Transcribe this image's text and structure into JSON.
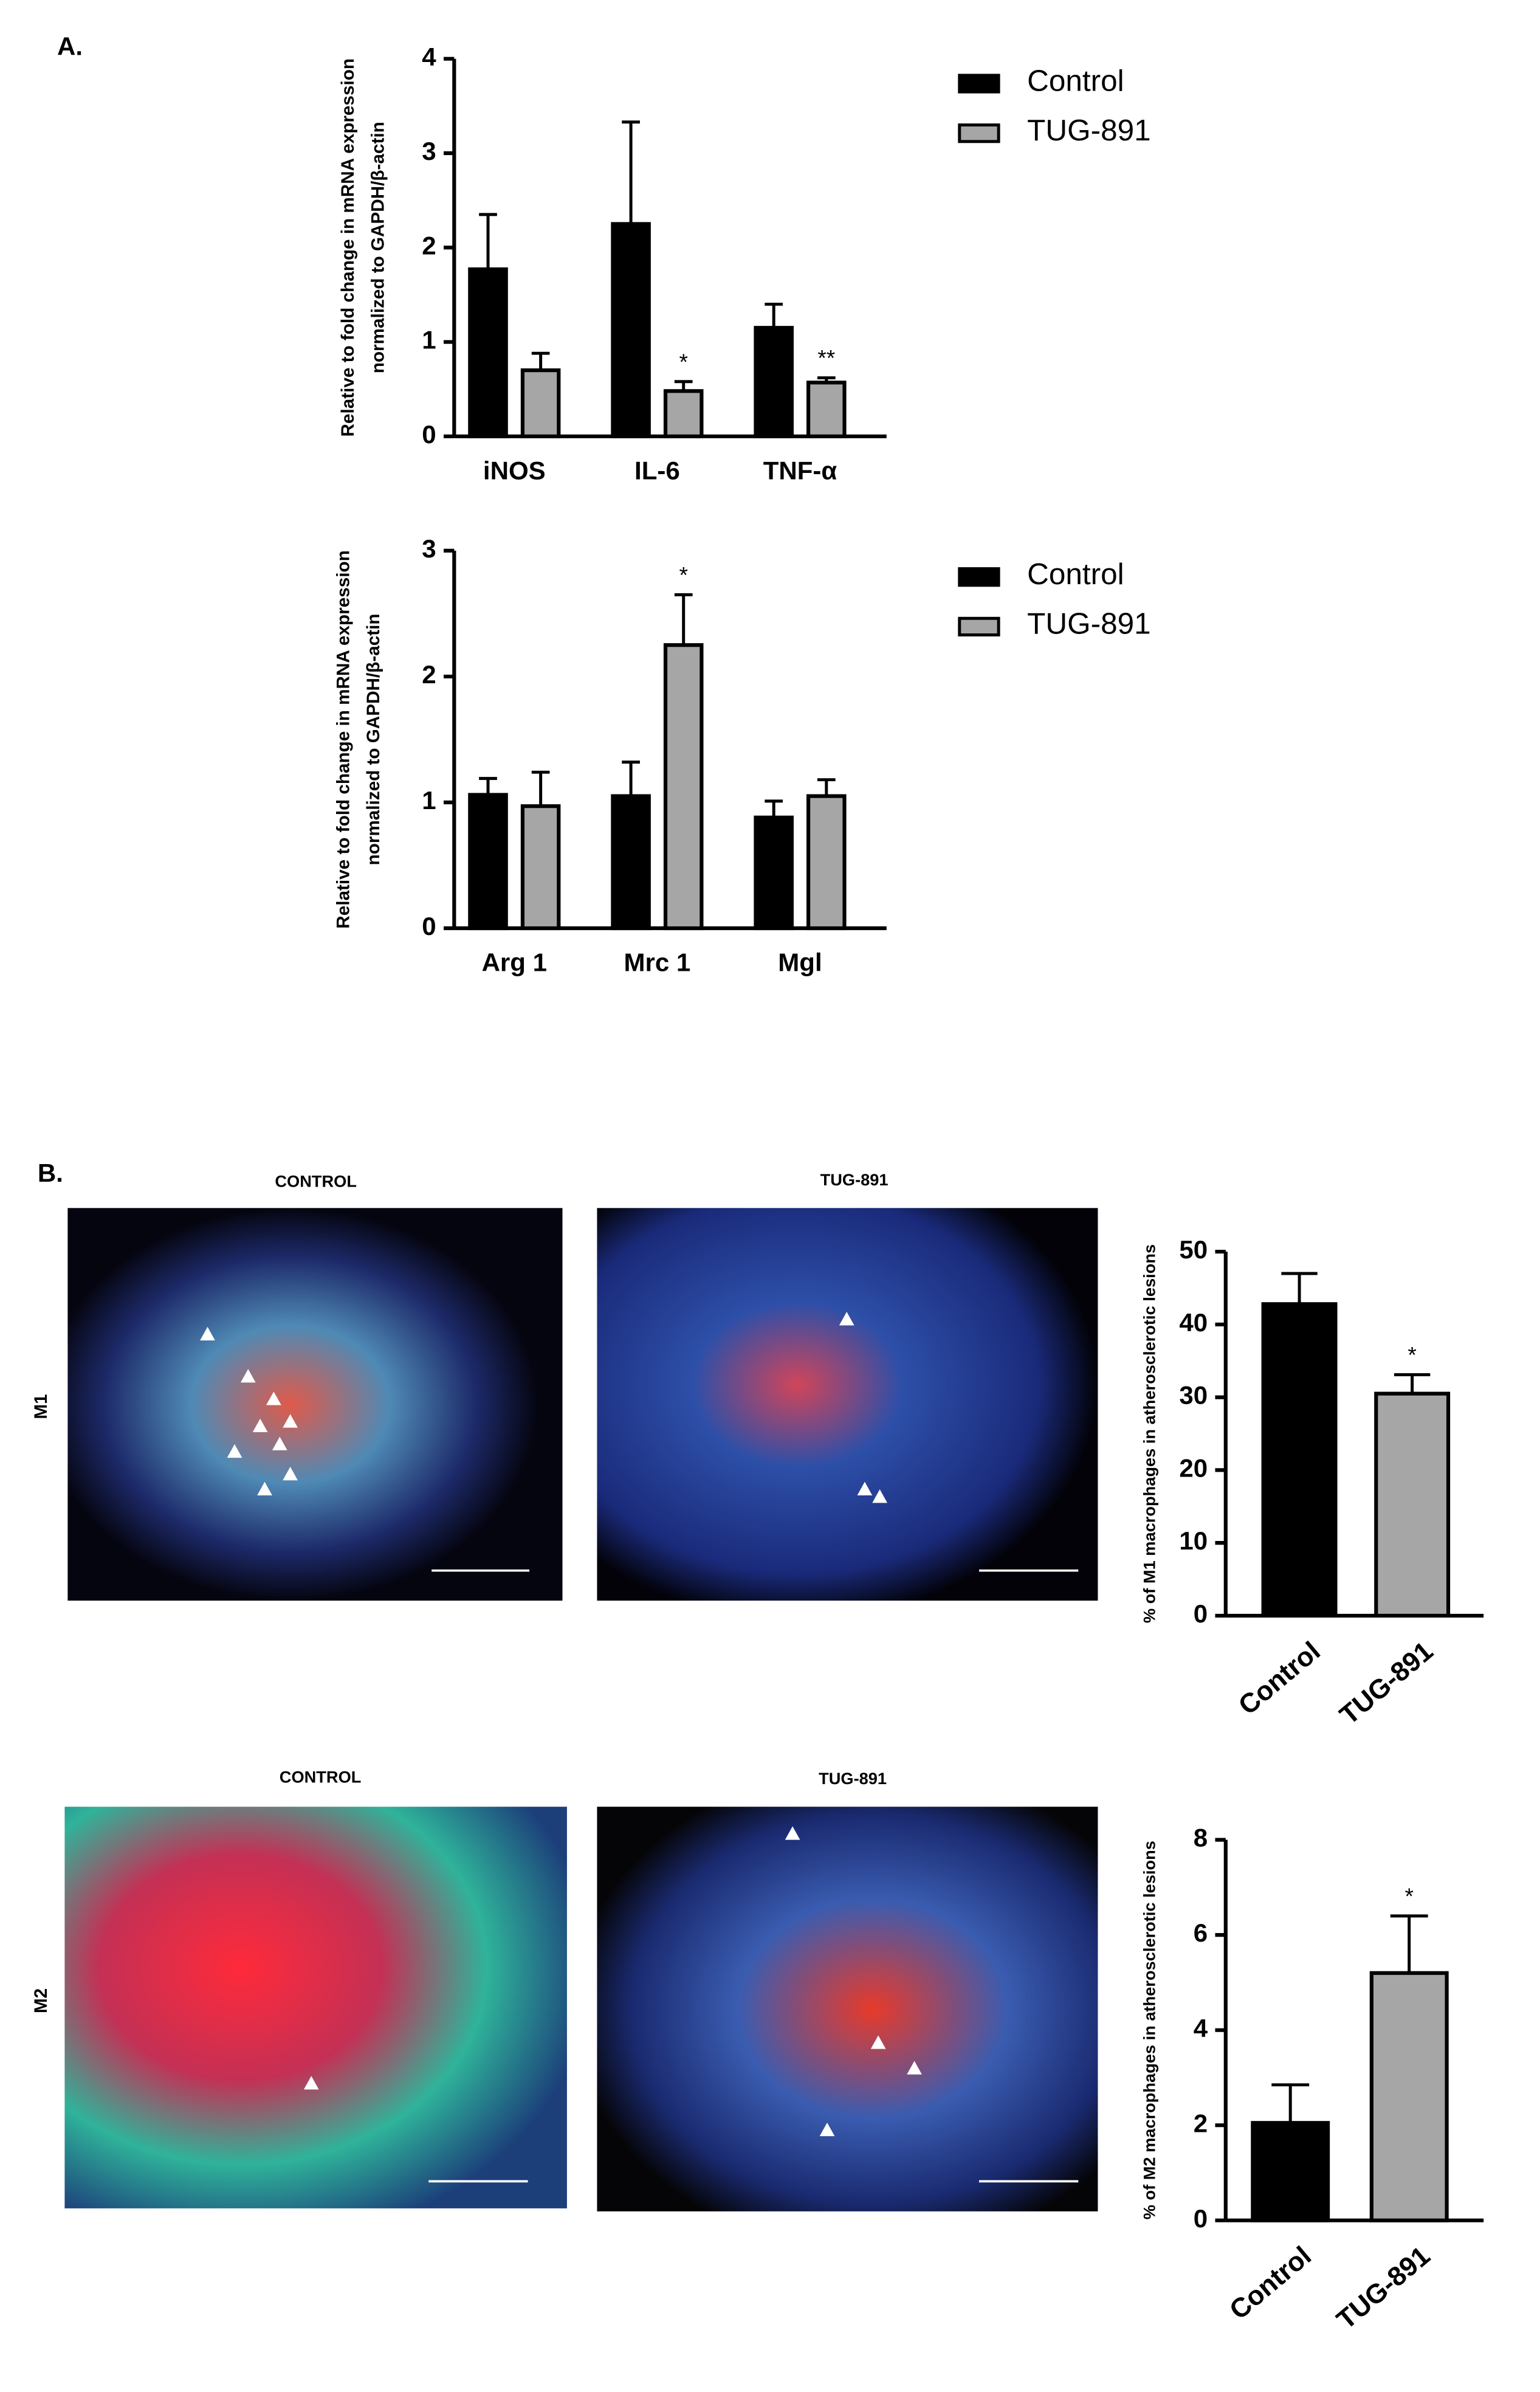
{
  "figure": {
    "panel_labels": [
      "A.",
      "B."
    ],
    "micrographs": {
      "row_labels": [
        "M1",
        "M2"
      ],
      "column_labels": [
        [
          "CONTROL",
          "TUG-891"
        ],
        [
          "CONTROL",
          "TUG-891"
        ]
      ]
    }
  },
  "chart_data": [
    {
      "type": "bar",
      "y_label": [
        "Relative to fold change in mRNA expression",
        "normalized to GAPDH/β-actin"
      ],
      "categories": [
        "iNOS",
        "IL-6",
        "TNF-α"
      ],
      "series": [
        {
          "name": "Control",
          "color": "#000000",
          "values": [
            1.77,
            2.25,
            1.15
          ],
          "errors": [
            0.58,
            1.08,
            0.25
          ],
          "significance": [
            null,
            null,
            null
          ]
        },
        {
          "name": "TUG-891",
          "color": "#a6a6a6",
          "values": [
            0.7,
            0.48,
            0.57
          ],
          "errors": [
            0.18,
            0.1,
            0.05
          ],
          "significance": [
            null,
            "*",
            "**"
          ]
        }
      ],
      "ylim": [
        0,
        4
      ],
      "yticks": [
        0,
        1,
        2,
        3,
        4
      ],
      "legend": "right"
    },
    {
      "type": "bar",
      "y_label": [
        "Relative to fold change in mRNA expression",
        "normalized to GAPDH/β-actin"
      ],
      "categories": [
        "Arg 1",
        "Mrc 1",
        "Mgl"
      ],
      "series": [
        {
          "name": "Control",
          "color": "#000000",
          "values": [
            1.06,
            1.05,
            0.88
          ],
          "errors": [
            0.13,
            0.27,
            0.13
          ],
          "significance": [
            null,
            null,
            null
          ]
        },
        {
          "name": "TUG-891",
          "color": "#a6a6a6",
          "values": [
            0.97,
            2.25,
            1.05
          ],
          "errors": [
            0.27,
            0.4,
            0.13
          ],
          "significance": [
            null,
            "*",
            null
          ]
        }
      ],
      "ylim": [
        0,
        3
      ],
      "yticks": [
        0,
        1,
        2,
        3
      ],
      "legend": "right"
    },
    {
      "type": "bar",
      "y_label": [
        "% of M1 macrophages in atherosclerotic lesions"
      ],
      "categories": [
        "Control",
        "TUG-891"
      ],
      "series": [
        {
          "colors": [
            "#000000",
            "#a6a6a6"
          ],
          "values": [
            42.8,
            30.5
          ],
          "errors": [
            4.2,
            2.6
          ],
          "significance": [
            null,
            "*"
          ]
        }
      ],
      "ylim": [
        0,
        50
      ],
      "yticks": [
        0,
        10,
        20,
        30,
        40,
        50
      ]
    },
    {
      "type": "bar",
      "y_label": [
        "% of M2 macrophages in atherosclerotic lesions"
      ],
      "categories": [
        "Control",
        "TUG-891"
      ],
      "series": [
        {
          "colors": [
            "#000000",
            "#a6a6a6"
          ],
          "values": [
            2.05,
            5.2
          ],
          "errors": [
            0.8,
            1.2
          ],
          "significance": [
            null,
            "*"
          ]
        }
      ],
      "ylim": [
        0,
        8
      ],
      "yticks": [
        0,
        2,
        4,
        6,
        8
      ]
    }
  ]
}
